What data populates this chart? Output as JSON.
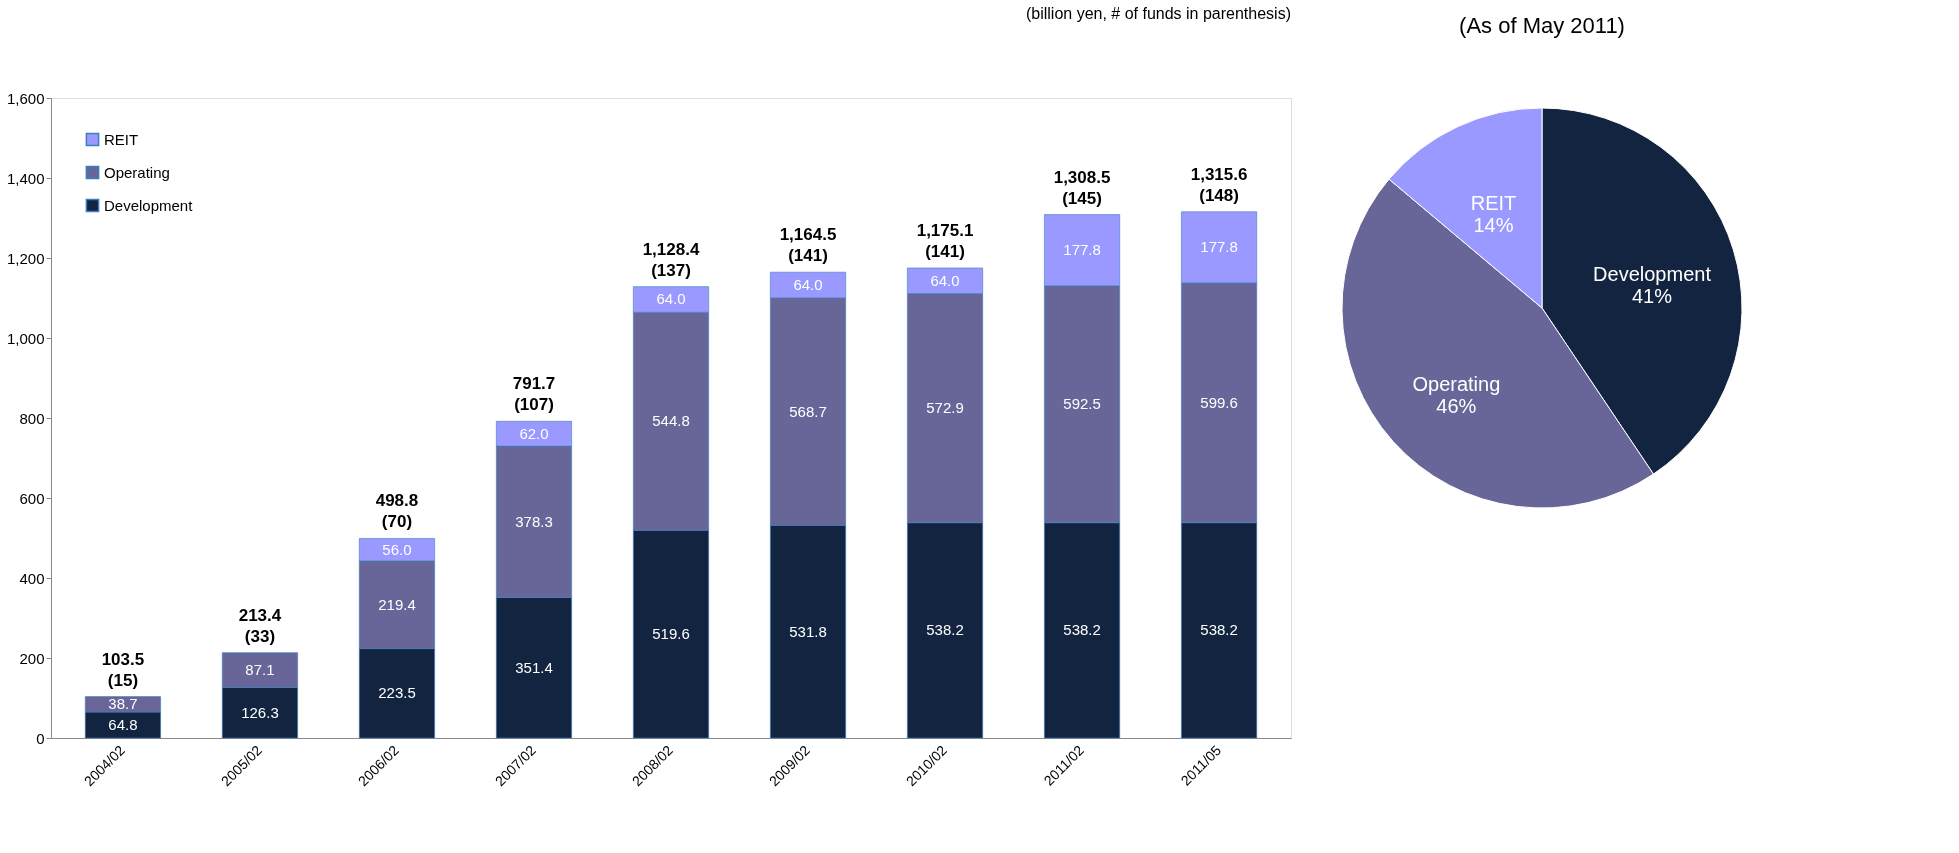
{
  "chart_data": [
    {
      "type": "bar",
      "stacked": true,
      "categories": [
        "2004/02",
        "2005/02",
        "2006/02",
        "2007/02",
        "2008/02",
        "2009/02",
        "2010/02",
        "2011/02",
        "2011/05"
      ],
      "series": [
        {
          "name": "Development",
          "color": "#12243f",
          "values": [
            64.8,
            126.3,
            223.5,
            351.4,
            519.6,
            531.8,
            538.2,
            538.2,
            538.2
          ]
        },
        {
          "name": "Operating",
          "color": "#686699",
          "values": [
            38.7,
            87.1,
            219.4,
            378.3,
            544.8,
            568.7,
            572.9,
            592.5,
            599.6
          ]
        },
        {
          "name": "REIT",
          "color": "#9999ff",
          "values": [
            null,
            null,
            56.0,
            62.0,
            64.0,
            64.0,
            64.0,
            177.8,
            177.8
          ],
          "value_labels": [
            null,
            null,
            "56.0",
            "62.0",
            "64.0",
            "64.0",
            "64.0",
            "177.8",
            "177.8"
          ]
        }
      ],
      "data_labels": true,
      "totals": [
        "103.5\n(15)",
        "213.4\n(33)",
        "498.8\n(70)",
        "791.7\n(107)",
        "1,128.4\n(137)",
        "1,164.5\n(141)",
        "1,175.1\n(141)",
        "1,308.5\n(145)",
        "1,315.6\n(148)"
      ],
      "ylim": [
        0,
        1600
      ],
      "yticks": [
        0,
        200,
        400,
        600,
        800,
        {
          "value": 1000,
          "label": "1,000"
        },
        {
          "value": 1200,
          "label": "1,200"
        },
        {
          "value": 1400,
          "label": "1,400"
        },
        {
          "value": 1600,
          "label": "1,600"
        }
      ],
      "legend": "top left",
      "grid": false,
      "annotations": [
        "(billion yen, # of funds in parenthesis)"
      ]
    },
    {
      "type": "pie",
      "title": "(As of May 2011)",
      "categories": [
        "Development",
        "Operating",
        "REIT"
      ],
      "values": [
        41,
        46,
        14
      ],
      "colors": [
        "#12243f",
        "#686699",
        "#9999ff"
      ],
      "value_labels": [
        "41%",
        "46%",
        "14%"
      ],
      "legend": false
    }
  ]
}
